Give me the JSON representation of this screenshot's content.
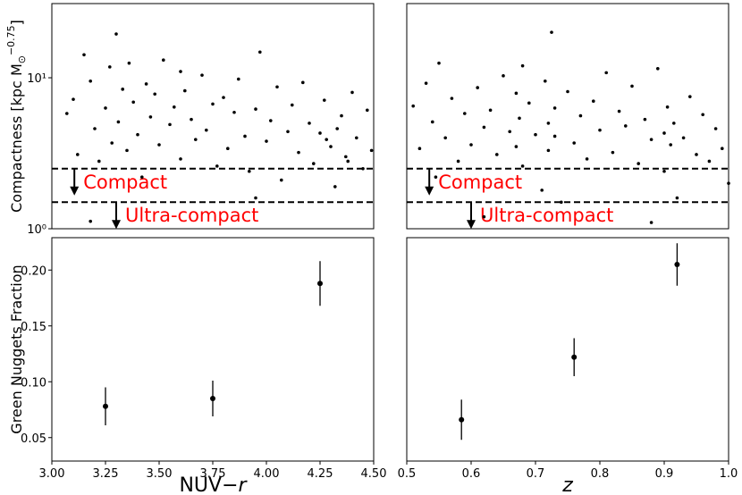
{
  "chart_data": [
    {
      "type": "scatter",
      "log_y": true,
      "color": "#000000",
      "ylabel": {
        "text": "Compactness [kpc M",
        "sub": "⊙",
        "sup": "−0.75",
        "end": "]"
      },
      "x": [
        3.07,
        3.1,
        3.12,
        3.15,
        3.18,
        3.2,
        3.22,
        3.25,
        3.27,
        3.28,
        3.3,
        3.31,
        3.33,
        3.35,
        3.36,
        3.38,
        3.4,
        3.42,
        3.44,
        3.46,
        3.48,
        3.5,
        3.52,
        3.55,
        3.57,
        3.6,
        3.62,
        3.65,
        3.67,
        3.7,
        3.72,
        3.75,
        3.77,
        3.8,
        3.82,
        3.85,
        3.87,
        3.9,
        3.92,
        3.95,
        3.97,
        4.0,
        4.02,
        4.05,
        4.07,
        4.1,
        4.12,
        4.15,
        4.17,
        4.2,
        4.22,
        4.25,
        4.27,
        4.3,
        4.32,
        4.35,
        4.37,
        4.4,
        4.42,
        4.45,
        4.47,
        4.49,
        3.18,
        4.28,
        4.33,
        4.38,
        3.95,
        3.6
      ],
      "values": [
        5.8,
        7.2,
        3.1,
        14.2,
        9.5,
        4.6,
        2.8,
        6.3,
        11.8,
        3.7,
        19.5,
        5.1,
        8.4,
        3.3,
        12.5,
        6.9,
        4.2,
        2.2,
        9.1,
        5.5,
        7.8,
        3.6,
        13.1,
        4.9,
        6.4,
        2.9,
        8.2,
        5.3,
        3.9,
        10.4,
        4.5,
        6.7,
        2.6,
        7.4,
        3.4,
        5.9,
        9.8,
        4.1,
        2.4,
        6.2,
        14.8,
        3.8,
        5.2,
        8.7,
        2.1,
        4.4,
        6.6,
        3.2,
        9.3,
        5.0,
        2.7,
        4.3,
        7.1,
        3.5,
        1.9,
        5.6,
        3.0,
        8.0,
        4.0,
        2.5,
        6.1,
        3.3,
        1.12,
        3.9,
        4.6,
        2.8,
        1.6,
        11.0
      ],
      "xlim": [
        3.0,
        4.5
      ],
      "ylim": [
        1,
        31
      ],
      "yticks": [
        {
          "value": 10,
          "label": "10¹"
        },
        {
          "value": 1,
          "label": "10⁰"
        }
      ],
      "thresholds": [
        {
          "value": 2.5,
          "label": "Compact"
        },
        {
          "value": 1.5,
          "label": "Ultra-compact"
        }
      ]
    },
    {
      "type": "scatter",
      "log_y": true,
      "color": "#000000",
      "x": [
        0.51,
        0.52,
        0.53,
        0.54,
        0.55,
        0.56,
        0.57,
        0.58,
        0.59,
        0.6,
        0.61,
        0.62,
        0.63,
        0.64,
        0.65,
        0.66,
        0.67,
        0.67,
        0.675,
        0.68,
        0.68,
        0.69,
        0.7,
        0.71,
        0.715,
        0.72,
        0.72,
        0.725,
        0.73,
        0.73,
        0.74,
        0.75,
        0.76,
        0.77,
        0.78,
        0.79,
        0.8,
        0.81,
        0.82,
        0.83,
        0.84,
        0.85,
        0.86,
        0.87,
        0.88,
        0.89,
        0.9,
        0.9,
        0.905,
        0.91,
        0.915,
        0.92,
        0.93,
        0.94,
        0.95,
        0.96,
        0.97,
        0.98,
        0.99,
        1.0,
        0.545,
        0.62,
        0.88
      ],
      "values": [
        6.5,
        3.4,
        9.2,
        5.1,
        12.5,
        4.0,
        7.3,
        2.8,
        5.8,
        3.6,
        8.6,
        4.7,
        6.1,
        3.1,
        10.3,
        4.4,
        7.9,
        3.5,
        5.4,
        12.0,
        2.6,
        6.8,
        4.2,
        1.8,
        9.5,
        5.0,
        3.3,
        20.0,
        6.3,
        4.1,
        1.5,
        8.1,
        3.7,
        5.6,
        2.9,
        7.0,
        4.5,
        10.8,
        3.2,
        6.0,
        4.8,
        8.8,
        2.7,
        5.3,
        3.9,
        11.5,
        4.3,
        2.4,
        6.4,
        3.6,
        5.0,
        1.6,
        4.0,
        7.5,
        3.1,
        5.7,
        2.8,
        4.6,
        3.4,
        2.0,
        2.2,
        1.2,
        1.1
      ],
      "xlim": [
        0.5,
        1.0
      ],
      "ylim": [
        1,
        31
      ],
      "thresholds": [
        {
          "value": 2.5,
          "label": "Compact"
        },
        {
          "value": 1.5,
          "label": "Ultra-compact"
        }
      ]
    },
    {
      "type": "errorbar",
      "color": "#000000",
      "ylabel": {
        "text": "Green Nuggets Fraction"
      },
      "xlabel": {
        "text": "NUV−",
        "italic": "r"
      },
      "x": [
        3.25,
        3.75,
        4.25
      ],
      "values": [
        0.078,
        0.085,
        0.188
      ],
      "errors": [
        0.017,
        0.016,
        0.02
      ],
      "xlim": [
        3.0,
        4.5
      ],
      "ylim": [
        0.029,
        0.229
      ],
      "xticks": [
        {
          "value": 3.0,
          "label": "3.00"
        },
        {
          "value": 3.25,
          "label": "3.25"
        },
        {
          "value": 3.5,
          "label": "3.50"
        },
        {
          "value": 3.75,
          "label": "3.75"
        },
        {
          "value": 4.0,
          "label": "4.00"
        },
        {
          "value": 4.25,
          "label": "4.25"
        },
        {
          "value": 4.5,
          "label": "4.50"
        }
      ],
      "yticks": [
        {
          "value": 0.05,
          "label": "0.05"
        },
        {
          "value": 0.1,
          "label": "0.10"
        },
        0.15,
        {
          "value": 0.2,
          "label": "0.20"
        }
      ]
    },
    {
      "type": "errorbar",
      "color": "#000000",
      "xlabel": {
        "italic": "z"
      },
      "x": [
        0.585,
        0.76,
        0.92
      ],
      "values": [
        0.066,
        0.122,
        0.205
      ],
      "errors": [
        0.018,
        0.017,
        0.019
      ],
      "xlim": [
        0.5,
        1.0
      ],
      "ylim": [
        0.029,
        0.229
      ],
      "xticks": [
        0.5,
        0.6,
        0.7,
        0.8,
        0.9,
        {
          "value": 1.0,
          "label": "1.0"
        }
      ]
    }
  ]
}
